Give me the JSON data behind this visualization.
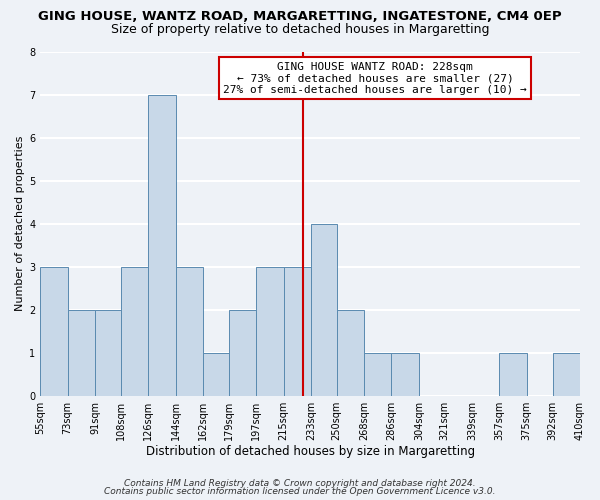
{
  "title": "GING HOUSE, WANTZ ROAD, MARGARETTING, INGATESTONE, CM4 0EP",
  "subtitle": "Size of property relative to detached houses in Margaretting",
  "xlabel": "Distribution of detached houses by size in Margaretting",
  "ylabel": "Number of detached properties",
  "bin_edges": [
    55,
    73,
    91,
    108,
    126,
    144,
    162,
    179,
    197,
    215,
    233,
    250,
    268,
    286,
    304,
    321,
    339,
    357,
    375,
    392,
    410
  ],
  "bar_heights": [
    3,
    2,
    2,
    3,
    7,
    3,
    1,
    2,
    3,
    3,
    4,
    2,
    1,
    1,
    0,
    0,
    0,
    1,
    0,
    1
  ],
  "bar_color": "#c8d8e8",
  "bar_edge_color": "#5a8ab0",
  "vline_x": 228,
  "vline_color": "#cc0000",
  "annotation_title": "GING HOUSE WANTZ ROAD: 228sqm",
  "annotation_line1": "← 73% of detached houses are smaller (27)",
  "annotation_line2": "27% of semi-detached houses are larger (10) →",
  "annotation_box_edge": "#cc0000",
  "ylim": [
    0,
    8
  ],
  "yticks": [
    0,
    1,
    2,
    3,
    4,
    5,
    6,
    7,
    8
  ],
  "tick_labels": [
    "55sqm",
    "73sqm",
    "91sqm",
    "108sqm",
    "126sqm",
    "144sqm",
    "162sqm",
    "179sqm",
    "197sqm",
    "215sqm",
    "233sqm",
    "250sqm",
    "268sqm",
    "286sqm",
    "304sqm",
    "321sqm",
    "339sqm",
    "357sqm",
    "375sqm",
    "392sqm",
    "410sqm"
  ],
  "footnote1": "Contains HM Land Registry data © Crown copyright and database right 2024.",
  "footnote2": "Contains public sector information licensed under the Open Government Licence v3.0.",
  "bg_color": "#eef2f7",
  "grid_color": "#ffffff",
  "title_fontsize": 9.5,
  "subtitle_fontsize": 9,
  "xlabel_fontsize": 8.5,
  "ylabel_fontsize": 8,
  "tick_fontsize": 7,
  "footnote_fontsize": 6.5,
  "annot_fontsize": 8
}
